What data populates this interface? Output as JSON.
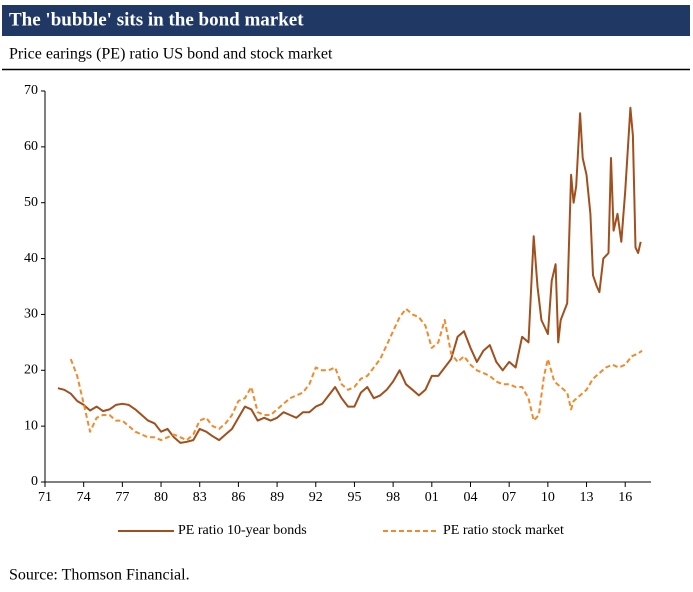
{
  "chart_data": {
    "type": "line",
    "title": "The 'bubble' sits in the bond market",
    "subtitle": "Price earings (PE) ratio US bond and stock market",
    "source": "Source: Thomson Financial.",
    "xlim": [
      1971,
      2018
    ],
    "xticks": [
      {
        "value": 1971,
        "label": "71"
      },
      {
        "value": 1974,
        "label": "74"
      },
      {
        "value": 1977,
        "label": "77"
      },
      {
        "value": 1980,
        "label": "80"
      },
      {
        "value": 1983,
        "label": "83"
      },
      {
        "value": 1986,
        "label": "86"
      },
      {
        "value": 1989,
        "label": "89"
      },
      {
        "value": 1992,
        "label": "92"
      },
      {
        "value": 1995,
        "label": "95"
      },
      {
        "value": 1998,
        "label": "98"
      },
      {
        "value": 2001,
        "label": "01"
      },
      {
        "value": 2004,
        "label": "04"
      },
      {
        "value": 2007,
        "label": "07"
      },
      {
        "value": 2010,
        "label": "10"
      },
      {
        "value": 2013,
        "label": "13"
      },
      {
        "value": 2016,
        "label": "16"
      }
    ],
    "ylim": [
      0,
      70
    ],
    "yticks": [
      0,
      10,
      20,
      30,
      40,
      50,
      60,
      70
    ],
    "grid": false,
    "series": [
      {
        "name": "PE ratio 10-year bonds",
        "color": "#a0501e",
        "dash": "none",
        "x": [
          1972.0,
          1972.5,
          1973.0,
          1973.5,
          1974.0,
          1974.5,
          1975.0,
          1975.5,
          1976.0,
          1976.5,
          1977.0,
          1977.5,
          1978.0,
          1978.5,
          1979.0,
          1979.5,
          1980.0,
          1980.5,
          1981.0,
          1981.5,
          1982.0,
          1982.5,
          1983.0,
          1983.5,
          1984.0,
          1984.5,
          1985.0,
          1985.5,
          1986.0,
          1986.5,
          1987.0,
          1987.5,
          1988.0,
          1988.5,
          1989.0,
          1989.5,
          1990.0,
          1990.5,
          1991.0,
          1991.5,
          1992.0,
          1992.5,
          1993.0,
          1993.5,
          1994.0,
          1994.5,
          1995.0,
          1995.5,
          1996.0,
          1996.5,
          1997.0,
          1997.5,
          1998.0,
          1998.5,
          1999.0,
          1999.5,
          2000.0,
          2000.5,
          2001.0,
          2001.5,
          2002.0,
          2002.5,
          2003.0,
          2003.5,
          2004.0,
          2004.5,
          2005.0,
          2005.5,
          2006.0,
          2006.5,
          2007.0,
          2007.5,
          2008.0,
          2008.5,
          2008.9,
          2009.2,
          2009.5,
          2010.0,
          2010.3,
          2010.6,
          2010.8,
          2011.0,
          2011.5,
          2011.8,
          2012.0,
          2012.2,
          2012.5,
          2012.7,
          2013.0,
          2013.3,
          2013.5,
          2013.8,
          2014.0,
          2014.3,
          2014.7,
          2014.9,
          2015.1,
          2015.4,
          2015.7,
          2016.0,
          2016.4,
          2016.6,
          2016.8,
          2017.0,
          2017.2
        ],
        "values": [
          16.8,
          16.5,
          15.8,
          14.5,
          13.8,
          12.8,
          13.5,
          12.7,
          13.0,
          13.8,
          14.0,
          13.8,
          13.0,
          12.0,
          11.0,
          10.5,
          9.0,
          9.5,
          8.0,
          7.0,
          7.2,
          7.5,
          9.5,
          9.0,
          8.2,
          7.5,
          8.5,
          9.5,
          11.5,
          13.5,
          13.0,
          11.0,
          11.5,
          11.0,
          11.5,
          12.5,
          12.0,
          11.5,
          12.5,
          12.5,
          13.5,
          14.0,
          15.5,
          17.0,
          15.0,
          13.5,
          13.5,
          16.0,
          17.0,
          15.0,
          15.5,
          16.5,
          18.0,
          20.0,
          17.5,
          16.5,
          15.5,
          16.5,
          19.0,
          19.0,
          20.5,
          22.0,
          26.0,
          27.0,
          24.0,
          21.5,
          23.5,
          24.5,
          21.5,
          20.0,
          21.5,
          20.5,
          26.0,
          25.0,
          44.0,
          35.0,
          29.0,
          26.5,
          36.0,
          39.0,
          25.0,
          29.0,
          32.0,
          55.0,
          50.0,
          53.0,
          66.0,
          58.0,
          55.0,
          48.0,
          37.0,
          35.0,
          34.0,
          40.0,
          41.0,
          58.0,
          45.0,
          48.0,
          43.0,
          52.0,
          67.0,
          62.0,
          42.0,
          41.0,
          43.0
        ]
      },
      {
        "name": "PE ratio stock market",
        "color": "#f08a2a",
        "dash": "5 3",
        "x": [
          1973.0,
          1973.5,
          1974.0,
          1974.5,
          1975.0,
          1975.5,
          1976.0,
          1976.5,
          1977.0,
          1977.5,
          1978.0,
          1978.5,
          1979.0,
          1979.5,
          1980.0,
          1980.5,
          1981.0,
          1981.5,
          1982.0,
          1982.5,
          1983.0,
          1983.5,
          1984.0,
          1984.5,
          1985.0,
          1985.5,
          1986.0,
          1986.5,
          1987.0,
          1987.5,
          1988.0,
          1988.5,
          1989.0,
          1989.5,
          1990.0,
          1990.5,
          1991.0,
          1991.5,
          1992.0,
          1992.5,
          1993.0,
          1993.5,
          1994.0,
          1994.5,
          1995.0,
          1995.5,
          1996.0,
          1996.5,
          1997.0,
          1997.5,
          1998.0,
          1998.5,
          1999.0,
          1999.5,
          2000.0,
          2000.5,
          2001.0,
          2001.5,
          2002.0,
          2002.5,
          2003.0,
          2003.5,
          2004.0,
          2004.5,
          2005.0,
          2005.5,
          2006.0,
          2006.5,
          2007.0,
          2007.5,
          2008.0,
          2008.5,
          2008.9,
          2009.3,
          2009.7,
          2010.0,
          2010.5,
          2011.0,
          2011.5,
          2011.8,
          2012.0,
          2012.5,
          2013.0,
          2013.5,
          2014.0,
          2014.5,
          2015.0,
          2015.5,
          2016.0,
          2016.5,
          2017.0,
          2017.3
        ],
        "values": [
          22.0,
          19.0,
          14.0,
          9.0,
          11.5,
          12.0,
          12.0,
          11.0,
          11.0,
          10.0,
          9.0,
          8.5,
          8.0,
          8.0,
          7.5,
          8.0,
          8.5,
          8.0,
          7.5,
          8.5,
          11.0,
          11.5,
          10.0,
          9.5,
          10.5,
          12.0,
          14.5,
          15.0,
          17.0,
          12.5,
          12.0,
          12.0,
          13.0,
          14.0,
          15.0,
          15.5,
          16.0,
          17.5,
          20.5,
          20.0,
          20.0,
          20.5,
          17.5,
          16.5,
          17.0,
          18.5,
          19.0,
          20.5,
          22.0,
          24.5,
          27.0,
          29.5,
          31.0,
          30.0,
          29.5,
          28.0,
          24.0,
          25.0,
          29.0,
          23.0,
          21.5,
          22.5,
          21.0,
          20.0,
          19.5,
          19.0,
          18.0,
          17.5,
          17.5,
          17.0,
          17.0,
          15.0,
          11.0,
          12.0,
          19.0,
          22.0,
          18.0,
          17.0,
          16.0,
          13.0,
          14.5,
          15.5,
          16.5,
          18.5,
          19.5,
          20.5,
          21.0,
          20.5,
          21.0,
          22.5,
          23.0,
          23.5
        ]
      }
    ]
  }
}
